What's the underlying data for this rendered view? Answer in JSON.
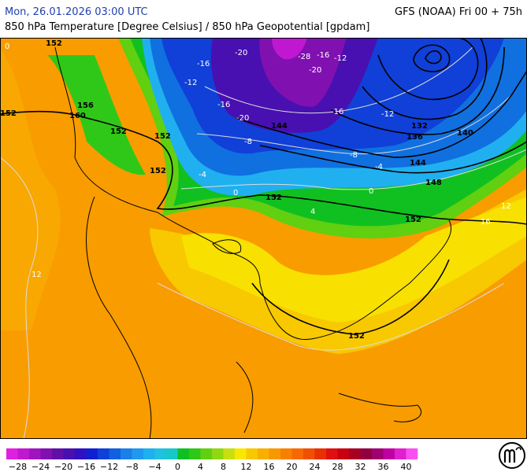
{
  "header": {
    "datetime": "Mon, 26.01.2026 03:00 UTC",
    "model": "GFS (NOAA) Fri 00 + 75h",
    "subtitle": "850 hPa Temperature [Degree Celsius] / 850 hPa Geopotential [gpdam]"
  },
  "map": {
    "geopotential_labels": [
      "152",
      "152",
      "152",
      "152",
      "156",
      "160",
      "152",
      "144",
      "132",
      "136",
      "140",
      "144",
      "148",
      "152",
      "152",
      "152"
    ],
    "temperature_labels": [
      "0",
      "-16",
      "-20",
      "-28",
      "-16",
      "-12",
      "-20",
      "-16",
      "-12",
      "-16",
      "-20",
      "-12",
      "-8",
      "-4",
      "0",
      "-4",
      "0",
      "4",
      "-8",
      "12",
      "16",
      "12"
    ]
  },
  "legend": {
    "colors": [
      "#e020e0",
      "#c018d0",
      "#a014c0",
      "#8010b0",
      "#6010a8",
      "#4810b0",
      "#3010c0",
      "#1020d0",
      "#1040d8",
      "#1060e0",
      "#1880e8",
      "#2098f0",
      "#20b0f0",
      "#20c0e0",
      "#18c8c8",
      "#10c020",
      "#30c818",
      "#60d010",
      "#90d810",
      "#c8e010",
      "#f8e800",
      "#f8c800",
      "#f8b000",
      "#f89800",
      "#f88000",
      "#f86800",
      "#f05000",
      "#e83000",
      "#e01010",
      "#c80010",
      "#a80020",
      "#900040",
      "#a00070",
      "#c000a0",
      "#e020d0",
      "#f850f0"
    ],
    "labels": [
      "−28",
      "−24",
      "−20",
      "−16",
      "−12",
      "−8",
      "−4",
      "0",
      "4",
      "8",
      "12",
      "16",
      "20",
      "24",
      "28",
      "32",
      "36",
      "40"
    ]
  }
}
